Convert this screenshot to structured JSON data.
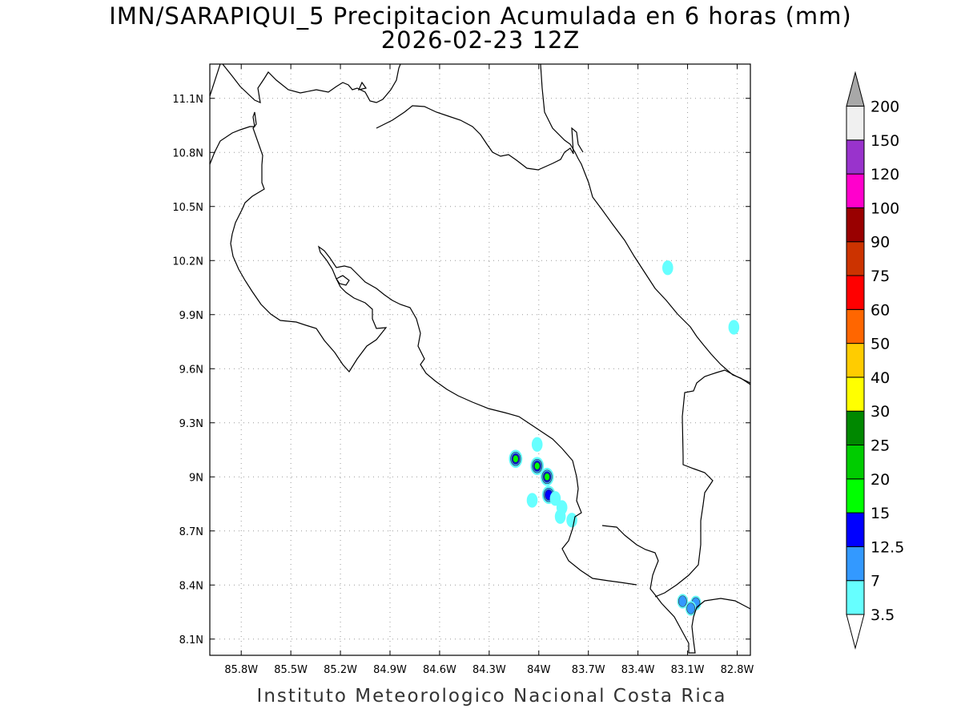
{
  "title": {
    "line1": "IMN/SARAPIQUI_5 Precipitacion Acumulada en 6 horas (mm)",
    "line2": "2026-02-23 12Z"
  },
  "footer": "Instituto Meteorologico Nacional Costa Rica",
  "axes": {
    "lon_ticks": [
      "85.8W",
      "85.5W",
      "85.2W",
      "84.9W",
      "84.6W",
      "84.3W",
      "84W",
      "83.7W",
      "83.4W",
      "83.1W",
      "82.8W"
    ],
    "lat_ticks": [
      "11.1N",
      "10.8N",
      "10.5N",
      "10.2N",
      "9.9N",
      "9.6N",
      "9.3N",
      "9N",
      "8.7N",
      "8.4N",
      "8.1N"
    ],
    "lon_range": [
      -85.99,
      -82.72
    ],
    "lat_range": [
      8.01,
      11.29
    ],
    "grid": "dotted"
  },
  "colorbar": {
    "labels": [
      "3.5",
      "7",
      "12.5",
      "15",
      "20",
      "25",
      "30",
      "40",
      "50",
      "60",
      "75",
      "90",
      "100",
      "120",
      "150",
      "200"
    ],
    "colors": [
      "#66ffff",
      "#3399ff",
      "#0000ff",
      "#00ff00",
      "#00cc00",
      "#008800",
      "#ffff00",
      "#ffcc00",
      "#ff6600",
      "#ff0000",
      "#cc3300",
      "#990000",
      "#ff00cc",
      "#9933cc",
      "#f0f0f0",
      "#a8a8a8"
    ]
  },
  "precip_cells": [
    {
      "lon": -84.14,
      "lat": 9.1,
      "level": 4
    },
    {
      "lon": -84.01,
      "lat": 9.06,
      "level": 4
    },
    {
      "lon": -83.95,
      "lat": 9.0,
      "level": 4
    },
    {
      "lon": -83.94,
      "lat": 8.9,
      "level": 3
    },
    {
      "lon": -83.9,
      "lat": 8.88,
      "level": 1
    },
    {
      "lon": -83.86,
      "lat": 8.83,
      "level": 1
    },
    {
      "lon": -83.87,
      "lat": 8.78,
      "level": 1
    },
    {
      "lon": -84.04,
      "lat": 8.87,
      "level": 1
    },
    {
      "lon": -84.01,
      "lat": 9.18,
      "level": 1
    },
    {
      "lon": -83.8,
      "lat": 8.76,
      "level": 1
    },
    {
      "lon": -83.13,
      "lat": 8.31,
      "level": 2
    },
    {
      "lon": -83.05,
      "lat": 8.3,
      "level": 2
    },
    {
      "lon": -83.08,
      "lat": 8.27,
      "level": 2
    },
    {
      "lon": -83.22,
      "lat": 10.16,
      "level": 1
    },
    {
      "lon": -82.82,
      "lat": 9.83,
      "level": 1
    }
  ]
}
